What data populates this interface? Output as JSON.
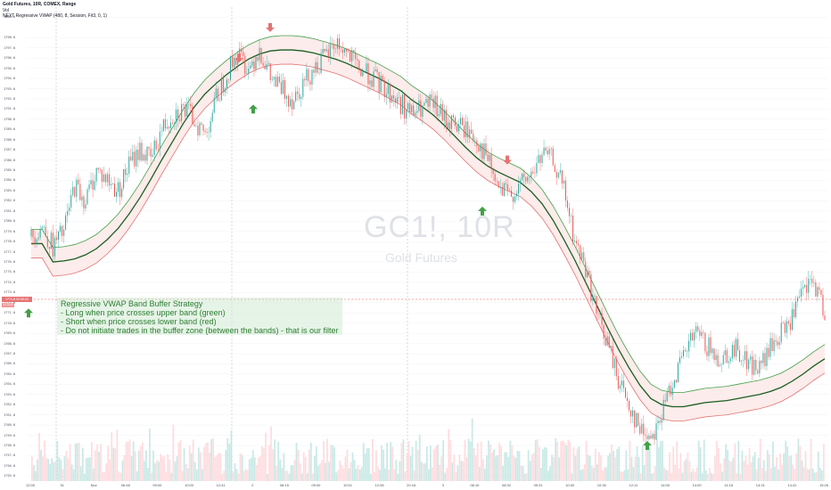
{
  "header": {
    "title": "Gold Futures, 10R, COMEX, Range",
    "volume_label": "Vol",
    "indicator_label": "NEXT Regressive VWAP (480, 8, Session, Fit3, 0, 1)"
  },
  "watermark": {
    "symbol": "GC1!, 10R",
    "name": "Gold Futures"
  },
  "annotation": {
    "title": "Regressive VWAP Band Buffer Strategy",
    "line1": "- Long when price crosses upper band (green)",
    "line2": "- Short when price crosses lower band (red)",
    "line3": "- Do not initiate trades in the buffer zone (between the bands) - that is our filter"
  },
  "price_badge": {
    "price": "1771.8",
    "countdown": "02:59:03",
    "small": "1770.9"
  },
  "colors": {
    "up_candle": "#26a69a",
    "down_candle": "#ef5350",
    "upper_band": "#43a047",
    "lower_band": "#e57373",
    "center_line": "#1b5e20",
    "buffer_fill": "#fbe9e7",
    "long_arrow": "#43a047",
    "short_arrow": "#e57373"
  },
  "chart_data": {
    "type": "line",
    "title": "Gold Futures, 10R, COMEX, Range",
    "y_ticks": [
      "1800.0",
      "1798.0",
      "1797.0",
      "1796.0",
      "1795.0",
      "1794.0",
      "1793.0",
      "1792.0",
      "1791.0",
      "1790.0",
      "1789.0",
      "1788.0",
      "1787.0",
      "1786.0",
      "1785.0",
      "1784.0",
      "1783.0",
      "1782.0",
      "1781.0",
      "1780.0",
      "1779.0",
      "1778.0",
      "1777.0",
      "1776.0",
      "1775.0",
      "1774.0",
      "1773.0",
      "1772.0",
      "1771.0",
      "1770.0",
      "1769.0",
      "1768.0",
      "1767.0",
      "1766.0",
      "1765.0",
      "1764.0",
      "1763.0",
      "1762.0",
      "1761.0",
      "1760.0",
      "1759.0",
      "1758.0",
      "1757.0",
      "1756.0",
      "1755.0"
    ],
    "x_ticks": [
      "12:00",
      "31",
      "Nov",
      "06:48",
      "09:00",
      "10:00",
      "12:41",
      "2",
      "06:15",
      "09:00",
      "10:01",
      "12:06",
      "20:16",
      "3",
      "06:10",
      "08:32",
      "09:31",
      "10:00",
      "10:30",
      "12:11",
      "14:00",
      "14:00",
      "14:15",
      "14:31",
      "14:41",
      "15:26"
    ],
    "ylim": [
      1754.5,
      1801
    ],
    "series": [
      {
        "name": "price",
        "values": [
          1778.5,
          1779.5,
          1777.5,
          1779.0,
          1783.5,
          1782.0,
          1785.0,
          1784.0,
          1783.0,
          1785.5,
          1787.0,
          1786.0,
          1789.0,
          1790.5,
          1791.0,
          1790.0,
          1788.5,
          1792.0,
          1794.5,
          1796.5,
          1795.0,
          1797.0,
          1794.0,
          1793.0,
          1792.0,
          1793.5,
          1795.0,
          1796.0,
          1797.5,
          1796.5,
          1795.0,
          1794.5,
          1793.5,
          1792.5,
          1791.5,
          1790.5,
          1791.0,
          1791.5,
          1790.0,
          1789.5,
          1789.0,
          1788.0,
          1786.0,
          1783.0,
          1782.5,
          1783.5,
          1784.5,
          1786.5,
          1786.0,
          1783.0,
          1778.0,
          1775.5,
          1771.0,
          1768.0,
          1764.5,
          1762.0,
          1759.5,
          1759.0,
          1761.0,
          1764.5,
          1766.5,
          1769.0,
          1768.0,
          1766.5,
          1767.0,
          1767.5,
          1766.0,
          1765.5,
          1767.5,
          1769.0,
          1770.5,
          1773.0,
          1774.0,
          1771.0
        ]
      },
      {
        "name": "vwap",
        "values": [
          1777.8,
          1777.8,
          1776.0,
          1776.1,
          1776.3,
          1776.7,
          1777.3,
          1778.2,
          1779.3,
          1780.7,
          1782.3,
          1784.1,
          1786.0,
          1787.8,
          1789.6,
          1791.2,
          1792.5,
          1793.5,
          1794.4,
          1795.2,
          1795.9,
          1796.4,
          1796.7,
          1796.8,
          1796.8,
          1796.7,
          1796.5,
          1796.2,
          1795.9,
          1795.5,
          1795.0,
          1794.5,
          1794.0,
          1793.4,
          1792.8,
          1791.9,
          1791.2,
          1790.4,
          1789.4,
          1788.3,
          1787.2,
          1786.2,
          1785.4,
          1784.8,
          1784.3,
          1783.8,
          1782.9,
          1781.7,
          1780.1,
          1778.2,
          1776.2,
          1774.0,
          1771.8,
          1769.6,
          1767.5,
          1765.6,
          1763.9,
          1762.6,
          1762.0,
          1761.8,
          1761.8,
          1762.0,
          1762.2,
          1762.3,
          1762.4,
          1762.6,
          1762.8,
          1763.0,
          1763.3,
          1763.7,
          1764.3,
          1765.0,
          1765.8,
          1766.5
        ]
      }
    ],
    "band_offset": 1.4,
    "long_signals": [
      [
        7,
        1791.0
      ],
      [
        39,
        1781.0
      ],
      [
        58,
        1758.0
      ],
      [
        0,
        1771.0
      ]
    ],
    "short_signals": [
      [
        6,
        1796.0
      ],
      [
        8,
        1799.0
      ],
      [
        42,
        1786.0
      ]
    ]
  }
}
